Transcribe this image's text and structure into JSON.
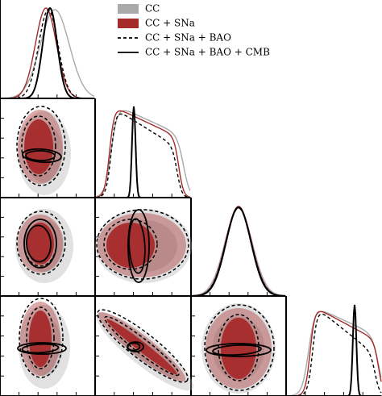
{
  "chart_data": {
    "type": "corner",
    "series": [
      {
        "name": "CC",
        "color": "#aaaaaa",
        "style": "filled"
      },
      {
        "name": "CC + SNa",
        "color": "#a52a2a",
        "style": "filled"
      },
      {
        "name": "CC + SNa + BAO",
        "color": "#000000",
        "style": "dashed"
      },
      {
        "name": "CC + SNa + BAO + CMB",
        "color": "#000000",
        "style": "solid"
      }
    ]
  }
}
